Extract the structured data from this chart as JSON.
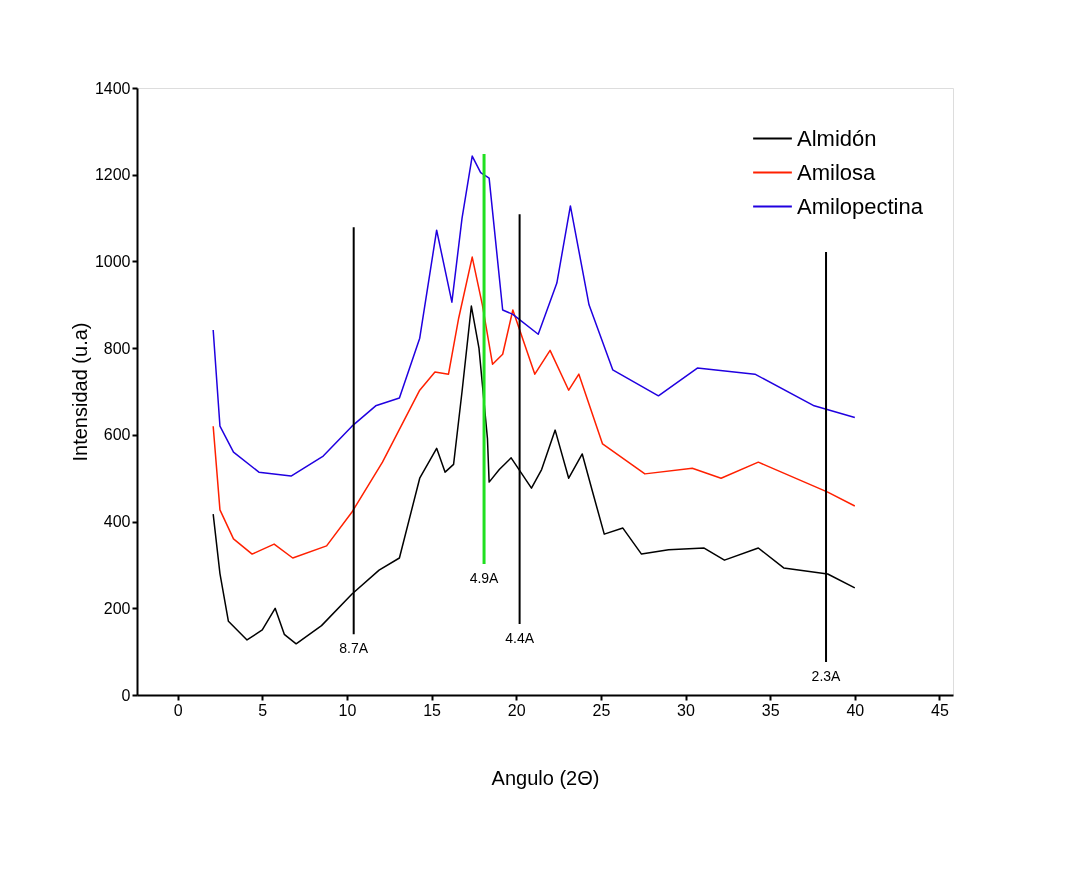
{
  "chart_data": {
    "type": "line",
    "xlabel": "Angulo (2Θ)",
    "ylabel": "Intensidad (u.a)",
    "xlim": [
      -2.4,
      45.8
    ],
    "xticks": [
      0,
      5,
      10,
      15,
      20,
      25,
      30,
      35,
      40,
      45
    ],
    "ylim": [
      0,
      1400
    ],
    "yticks": [
      0,
      200,
      400,
      600,
      800,
      1000,
      1200,
      1400
    ],
    "grid": false,
    "legend": "top right",
    "marker": "none",
    "line_style": "solid",
    "series": [
      {
        "name": "Almidón",
        "color": "#000000",
        "x": [
          2.1,
          2.5,
          3.0,
          4.1,
          5.0,
          5.76,
          6.3,
          7.0,
          8.5,
          10.3,
          11.9,
          13.1,
          14.3,
          15.3,
          15.8,
          16.3,
          16.8,
          17.35,
          17.8,
          18.3,
          18.4,
          19.0,
          19.7,
          20.9,
          21.5,
          22.3,
          23.1,
          23.9,
          24.5,
          25.2,
          26.3,
          27.4,
          29.0,
          31.1,
          32.3,
          34.3,
          35.8,
          38.4,
          40.0
        ],
        "values": [
          417,
          280,
          170,
          127,
          150,
          200,
          140,
          118,
          160,
          233,
          288,
          316,
          500,
          569,
          514,
          532,
          700,
          897,
          800,
          592,
          491,
          520,
          547,
          477,
          520,
          611,
          500,
          556,
          470,
          371,
          385,
          325,
          335,
          339,
          311,
          339,
          293,
          279,
          247
        ]
      },
      {
        "name": "Amilosa",
        "color": "#ff2000",
        "x": [
          2.1,
          2.5,
          3.3,
          4.4,
          5.7,
          6.8,
          8.8,
          10.3,
          12.1,
          14.3,
          15.2,
          16.0,
          16.6,
          17.4,
          18.0,
          18.6,
          19.2,
          19.8,
          21.1,
          22.0,
          23.1,
          23.7,
          25.1,
          27.6,
          30.4,
          32.1,
          34.3,
          38.4,
          40.0
        ],
        "values": [
          620,
          427,
          360,
          325,
          348,
          316,
          344,
          422,
          537,
          703,
          745,
          740,
          869,
          1010,
          900,
          763,
          786,
          888,
          740,
          795,
          703,
          740,
          579,
          510,
          523,
          500,
          537,
          468,
          436
        ]
      },
      {
        "name": "Amilopectina",
        "color": "#2000e0",
        "x": [
          2.1,
          2.5,
          3.3,
          4.8,
          6.7,
          8.6,
          10.3,
          11.7,
          13.1,
          14.3,
          15.3,
          16.2,
          16.8,
          17.4,
          17.9,
          18.4,
          19.2,
          19.8,
          21.3,
          22.4,
          23.2,
          24.3,
          25.7,
          28.4,
          30.7,
          34.1,
          37.6,
          40.0
        ],
        "values": [
          842,
          620,
          560,
          514,
          505,
          551,
          620,
          667,
          685,
          823,
          1072,
          906,
          1100,
          1243,
          1205,
          1192,
          888,
          878,
          832,
          950,
          1128,
          900,
          750,
          690,
          754,
          740,
          667,
          640
        ]
      },
      {
        "type": "line",
        "color": "#000000",
        "x": [
          10.4,
          10.4
        ],
        "values": [
          140,
          1079
        ]
      },
      {
        "type": "line",
        "color": "#20e020",
        "x": [
          18.1,
          18.1
        ],
        "values": [
          302,
          1248
        ]
      },
      {
        "type": "line",
        "color": "#000000",
        "x": [
          20.2,
          20.2
        ],
        "values": [
          164,
          1109
        ]
      },
      {
        "type": "line",
        "color": "#000000",
        "x": [
          38.3,
          38.3
        ],
        "values": [
          76,
          1022
        ]
      }
    ],
    "annotations": [
      {
        "text": "8.7A",
        "x": 10.4,
        "y": 140
      },
      {
        "text": "4.9A",
        "x": 18.1,
        "y": 302
      },
      {
        "text": "4.4A",
        "x": 20.2,
        "y": 164
      },
      {
        "text": "2.3A",
        "x": 38.3,
        "y": 76
      }
    ]
  }
}
